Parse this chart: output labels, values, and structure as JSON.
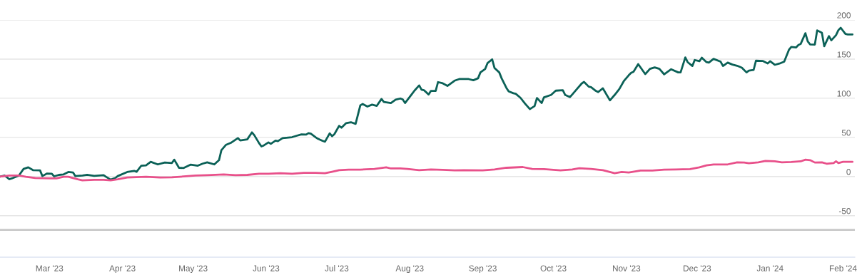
{
  "chart_data": {
    "type": "line",
    "series": [
      {
        "color": "#0b6157",
        "x": [
          "2023-02-08",
          "2023-02-10",
          "2023-02-12",
          "2023-02-13",
          "2023-02-16",
          "2023-02-18",
          "2023-02-20",
          "2023-02-22",
          "2023-02-25",
          "2023-02-26",
          "2023-02-28",
          "2023-03-02",
          "2023-03-03",
          "2023-03-05",
          "2023-03-07",
          "2023-03-09",
          "2023-03-11",
          "2023-03-12",
          "2023-03-15",
          "2023-03-17",
          "2023-03-20",
          "2023-03-24",
          "2023-03-25",
          "2023-03-27",
          "2023-03-29",
          "2023-03-30",
          "2023-04-03",
          "2023-04-06",
          "2023-04-07",
          "2023-04-09",
          "2023-04-11",
          "2023-04-13",
          "2023-04-16",
          "2023-04-19",
          "2023-04-22",
          "2023-04-23",
          "2023-04-25",
          "2023-04-27",
          "2023-04-30",
          "2023-05-03",
          "2023-05-05",
          "2023-05-07",
          "2023-05-10",
          "2023-05-12",
          "2023-05-13",
          "2023-05-15",
          "2023-05-17",
          "2023-05-20",
          "2023-05-21",
          "2023-05-24",
          "2023-05-26",
          "2023-05-27",
          "2023-05-29",
          "2023-05-30",
          "2023-05-31",
          "2023-06-02",
          "2023-06-03",
          "2023-06-05",
          "2023-06-06",
          "2023-06-08",
          "2023-06-12",
          "2023-06-14",
          "2023-06-16",
          "2023-06-18",
          "2023-06-19",
          "2023-06-20",
          "2023-06-22",
          "2023-06-23",
          "2023-06-25",
          "2023-06-26",
          "2023-06-28",
          "2023-06-29",
          "2023-06-30",
          "2023-07-02",
          "2023-07-03",
          "2023-07-05",
          "2023-07-07",
          "2023-07-09",
          "2023-07-11",
          "2023-07-12",
          "2023-07-14",
          "2023-07-16",
          "2023-07-18",
          "2023-07-20",
          "2023-07-21",
          "2023-07-24",
          "2023-07-26",
          "2023-07-28",
          "2023-07-29",
          "2023-07-30",
          "2023-08-02",
          "2023-08-03",
          "2023-08-05",
          "2023-08-06",
          "2023-08-07",
          "2023-08-09",
          "2023-08-10",
          "2023-08-12",
          "2023-08-13",
          "2023-08-15",
          "2023-08-17",
          "2023-08-20",
          "2023-08-22",
          "2023-08-26",
          "2023-08-28",
          "2023-08-30",
          "2023-08-31",
          "2023-09-02",
          "2023-09-03",
          "2023-09-05",
          "2023-09-06",
          "2023-09-08",
          "2023-09-09",
          "2023-09-11",
          "2023-09-12",
          "2023-09-14",
          "2023-09-15",
          "2023-09-17",
          "2023-09-19",
          "2023-09-21",
          "2023-09-23",
          "2023-09-24",
          "2023-09-26",
          "2023-09-27",
          "2023-09-30",
          "2023-10-02",
          "2023-10-05",
          "2023-10-06",
          "2023-10-08",
          "2023-10-09",
          "2023-10-11",
          "2023-10-13",
          "2023-10-14",
          "2023-10-16",
          "2023-10-17",
          "2023-10-19",
          "2023-10-20",
          "2023-10-22",
          "2023-10-25",
          "2023-10-27",
          "2023-10-29",
          "2023-10-31",
          "2023-11-02",
          "2023-11-03",
          "2023-11-04",
          "2023-11-06",
          "2023-11-09",
          "2023-11-11",
          "2023-11-13",
          "2023-11-15",
          "2023-11-17",
          "2023-11-20",
          "2023-11-23",
          "2023-11-24",
          "2023-11-26",
          "2023-11-27",
          "2023-11-29",
          "2023-11-30",
          "2023-12-02",
          "2023-12-03",
          "2023-12-05",
          "2023-12-06",
          "2023-12-08",
          "2023-12-11",
          "2023-12-12",
          "2023-12-14",
          "2023-12-16",
          "2023-12-18",
          "2023-12-20",
          "2023-12-22",
          "2023-12-23",
          "2023-12-25",
          "2023-12-26",
          "2023-12-29",
          "2023-12-31",
          "2024-01-01",
          "2024-01-03",
          "2024-01-05",
          "2024-01-07",
          "2024-01-09",
          "2024-01-10",
          "2024-01-12",
          "2024-01-13",
          "2024-01-14",
          "2024-01-16",
          "2024-01-17",
          "2024-01-18",
          "2024-01-20",
          "2024-01-21",
          "2024-01-23",
          "2024-01-24",
          "2024-01-26",
          "2024-01-27",
          "2024-01-29",
          "2024-01-30",
          "2024-01-31",
          "2024-02-02",
          "2024-02-03",
          "2024-02-05"
        ],
        "values": [
          0,
          1.2,
          -3.4,
          -2.4,
          1.2,
          9.7,
          11.8,
          8.2,
          7.9,
          0.6,
          3.9,
          3.6,
          0.3,
          2.1,
          2.7,
          5.8,
          5.2,
          0.6,
          1.2,
          2.1,
          0.9,
          1.8,
          -0.3,
          -3.9,
          -1.8,
          0.6,
          5.8,
          7.3,
          6.1,
          13.9,
          14.2,
          18.8,
          15.5,
          17.9,
          17.3,
          21.5,
          11.2,
          10.9,
          15.2,
          13.9,
          16.4,
          18.2,
          15.5,
          20.9,
          33.6,
          40.6,
          43,
          49.1,
          46.1,
          47.5,
          56.4,
          52.7,
          42.7,
          38.5,
          39.7,
          43.6,
          41.8,
          45.8,
          45.2,
          49.1,
          50.3,
          52.1,
          53.9,
          53.6,
          55.5,
          54.8,
          50.3,
          48.2,
          45.5,
          44.5,
          55.2,
          51.5,
          54.2,
          64.8,
          62.4,
          68.2,
          69.4,
          67.3,
          90.9,
          92.7,
          89.4,
          91.8,
          90.3,
          99.1,
          95.2,
          93.9,
          98.2,
          99.7,
          98.5,
          93.9,
          105.7,
          109.7,
          116.4,
          110.9,
          110.3,
          104.8,
          109.4,
          109.4,
          120.6,
          119.1,
          115.8,
          122.4,
          124.5,
          124.5,
          123,
          125.5,
          133,
          137.3,
          144.8,
          149.7,
          138.5,
          133,
          125.5,
          113.4,
          108.8,
          106.4,
          105.7,
          100.6,
          93,
          86.1,
          90,
          100.3,
          93.9,
          101.2,
          104.2,
          109.7,
          110.3,
          104.2,
          101.5,
          104.8,
          111.8,
          118.8,
          120.9,
          114.8,
          114.2,
          109.4,
          107.9,
          112.7,
          97.3,
          104.2,
          111.8,
          122.4,
          129.4,
          132.4,
          133.9,
          143.6,
          130.9,
          137.5,
          139.4,
          137.5,
          130.6,
          137,
          133,
          133,
          152.1,
          146.1,
          141.2,
          148.8,
          147.3,
          151.8,
          146.1,
          145.5,
          150.3,
          146.7,
          141.2,
          145.5,
          143,
          141.5,
          139.1,
          133,
          135.2,
          136.1,
          147.9,
          147.5,
          144.5,
          147.3,
          142.7,
          144.3,
          146.7,
          161.8,
          165.5,
          164.8,
          167.9,
          169.4,
          183.1,
          172.5,
          168.8,
          168.5,
          186.7,
          183.6,
          166.4,
          179.4,
          174,
          180.6,
          186.9,
          190,
          182.1,
          181.5,
          181.5
        ]
      },
      {
        "color": "#e8508a",
        "x": [
          "2023-02-08",
          "2023-02-12",
          "2023-02-16",
          "2023-02-19",
          "2023-02-23",
          "2023-03-01",
          "2023-03-04",
          "2023-03-07",
          "2023-03-09",
          "2023-03-13",
          "2023-03-15",
          "2023-03-20",
          "2023-03-24",
          "2023-03-27",
          "2023-03-30",
          "2023-04-03",
          "2023-04-11",
          "2023-04-17",
          "2023-04-22",
          "2023-04-28",
          "2023-05-02",
          "2023-05-07",
          "2023-05-14",
          "2023-05-19",
          "2023-05-24",
          "2023-05-29",
          "2023-06-02",
          "2023-06-07",
          "2023-06-12",
          "2023-06-17",
          "2023-06-22",
          "2023-06-26",
          "2023-06-29",
          "2023-07-02",
          "2023-07-06",
          "2023-07-11",
          "2023-07-17",
          "2023-07-22",
          "2023-07-24",
          "2023-07-28",
          "2023-07-31",
          "2023-08-05",
          "2023-08-10",
          "2023-08-15",
          "2023-08-20",
          "2023-08-24",
          "2023-09-01",
          "2023-09-06",
          "2023-09-11",
          "2023-09-18",
          "2023-09-22",
          "2023-09-27",
          "2023-10-04",
          "2023-10-09",
          "2023-10-12",
          "2023-10-17",
          "2023-10-22",
          "2023-10-27",
          "2023-10-30",
          "2023-11-02",
          "2023-11-07",
          "2023-11-12",
          "2023-11-17",
          "2023-11-22",
          "2023-11-28",
          "2023-12-02",
          "2023-12-05",
          "2023-12-08",
          "2023-12-14",
          "2023-12-18",
          "2023-12-21",
          "2023-12-23",
          "2023-12-27",
          "2023-12-30",
          "2024-01-03",
          "2024-01-06",
          "2024-01-10",
          "2024-01-14",
          "2024-01-16",
          "2024-01-18",
          "2024-01-20",
          "2024-01-23",
          "2024-01-25",
          "2024-01-28",
          "2024-01-29",
          "2024-01-30",
          "2024-02-01",
          "2024-02-05"
        ],
        "values": [
          0,
          1.2,
          1.2,
          -0.3,
          -1.8,
          -2.4,
          -2.4,
          -0.3,
          -0.3,
          -3.4,
          -4.8,
          -4.2,
          -4.2,
          -4.8,
          -3.4,
          -1.2,
          -0.3,
          -1.2,
          -0.9,
          0.3,
          1.2,
          1.8,
          2.7,
          1.8,
          2.1,
          3.6,
          3.6,
          4.2,
          3.6,
          4.8,
          4.8,
          4.2,
          6.1,
          8.2,
          8.8,
          8.8,
          9.7,
          11.8,
          10.3,
          10.3,
          9.7,
          8.2,
          9.1,
          8.5,
          7.9,
          8.2,
          7.9,
          9.1,
          11.2,
          12.1,
          9.7,
          9.4,
          7.9,
          9.1,
          10.6,
          9.7,
          8.2,
          4.2,
          5.8,
          5.2,
          7.6,
          7.6,
          8.8,
          9.1,
          9.4,
          11.8,
          14.2,
          15.5,
          15.5,
          18.2,
          17.9,
          17,
          18.2,
          20,
          19.4,
          18.2,
          18.5,
          19.4,
          21.5,
          20.9,
          17.9,
          18.2,
          16.4,
          17.3,
          19.4,
          17.3,
          18.8,
          18.8
        ]
      }
    ],
    "xlim": [
      "2023-02-08",
      "2024-02-06"
    ],
    "xticks": [
      {
        "value": "2023-03-01",
        "label": "Mar '23"
      },
      {
        "value": "2023-04-01",
        "label": "Apr '23"
      },
      {
        "value": "2023-05-01",
        "label": "May '23"
      },
      {
        "value": "2023-06-01",
        "label": "Jun '23"
      },
      {
        "value": "2023-07-01",
        "label": "Jul '23"
      },
      {
        "value": "2023-08-01",
        "label": "Aug '23"
      },
      {
        "value": "2023-09-01",
        "label": "Sep '23"
      },
      {
        "value": "2023-10-01",
        "label": "Oct '23"
      },
      {
        "value": "2023-11-01",
        "label": "Nov '23"
      },
      {
        "value": "2023-12-01",
        "label": "Dec '23"
      },
      {
        "value": "2024-01-01",
        "label": "Jan '24"
      },
      {
        "value": "2024-02-01",
        "label": "Feb '24"
      }
    ],
    "ylim": [
      -103,
      200
    ],
    "yticks": [
      -50,
      0,
      50,
      100,
      150,
      200
    ],
    "grid": "y",
    "ref_lines": [
      {
        "axis": "y",
        "value": -68,
        "color": "#c8c8c8"
      }
    ]
  }
}
